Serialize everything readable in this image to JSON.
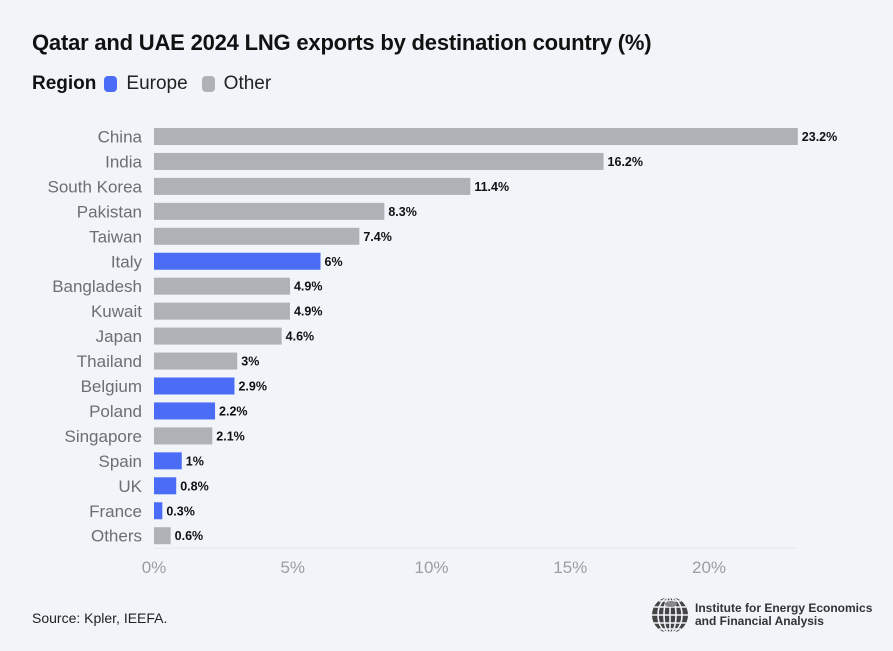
{
  "legend": {
    "label": "Region",
    "items": [
      {
        "name": "Europe",
        "color": "#4a6cf7"
      },
      {
        "name": "Other",
        "color": "#aeb2b7"
      }
    ]
  },
  "footer": {
    "source": "Source: Kpler, IEEFA.",
    "logo_line1": "Institute for Energy Economics",
    "logo_line2": "and Financial Analysis",
    "logo_icon": "globe-icon"
  },
  "chart_data": {
    "type": "bar",
    "orientation": "horizontal",
    "title": "Qatar and UAE 2024 LNG exports by destination country (%)",
    "xlabel": "",
    "ylabel": "",
    "xlim": [
      0,
      23.2
    ],
    "xticks": [
      0,
      5,
      10,
      15,
      20
    ],
    "xtick_labels": [
      "0%",
      "5%",
      "10%",
      "15%",
      "20%"
    ],
    "grid": false,
    "legend_position": "top-left",
    "categories": [
      "China",
      "India",
      "South Korea",
      "Pakistan",
      "Taiwan",
      "Italy",
      "Bangladesh",
      "Kuwait",
      "Japan",
      "Thailand",
      "Belgium",
      "Poland",
      "Singapore",
      "Spain",
      "UK",
      "France",
      "Others"
    ],
    "values": [
      23.2,
      16.2,
      11.4,
      8.3,
      7.4,
      6,
      4.9,
      4.9,
      4.6,
      3,
      2.9,
      2.2,
      2.1,
      1,
      0.8,
      0.3,
      0.6
    ],
    "value_labels": [
      "23.2%",
      "16.2%",
      "11.4%",
      "8.3%",
      "7.4%",
      "6%",
      "4.9%",
      "4.9%",
      "4.6%",
      "3%",
      "2.9%",
      "2.2%",
      "2.1%",
      "1%",
      "0.8%",
      "0.3%",
      "0.6%"
    ],
    "regions": [
      "Other",
      "Other",
      "Other",
      "Other",
      "Other",
      "Europe",
      "Other",
      "Other",
      "Other",
      "Other",
      "Europe",
      "Europe",
      "Other",
      "Europe",
      "Europe",
      "Europe",
      "Other"
    ]
  }
}
